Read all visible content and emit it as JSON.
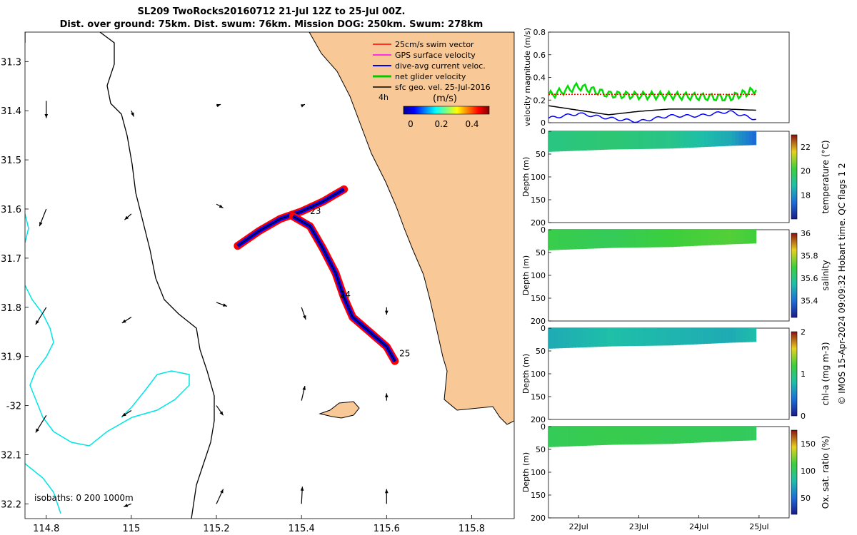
{
  "title": {
    "line1": "SL209 TwoRocks20160712 21-Jul 12Z to 25-Jul 00Z.",
    "line2": "Dist. over ground: 75km. Dist. swum: 76km. Mission DOG: 250km. Swum: 278km"
  },
  "chart_data": [
    {
      "type": "map",
      "name": "glider-track-map",
      "xlim": [
        114.75,
        115.9
      ],
      "ylim": [
        -32.23,
        -31.24
      ],
      "x_ticks": [
        114.8,
        115,
        115.2,
        115.4,
        115.6,
        115.8
      ],
      "x_tick_labels": [
        "114.8",
        "115",
        "115.2",
        "115.4",
        "115.6",
        "115.8"
      ],
      "y_ticks": [
        -31.3,
        -31.4,
        -31.5,
        -31.6,
        -31.7,
        -31.8,
        -31.9,
        -32.0,
        -32.1,
        -32.2
      ],
      "y_tick_labels": [
        "31.3",
        "31.4",
        "31.5",
        "31.6",
        "31.7",
        "31.8",
        "31.9",
        "-32",
        "32.1",
        "32.2"
      ],
      "legend": [
        {
          "label": "25cm/s swim vector",
          "color": "#ff0000"
        },
        {
          "label": "GPS surface velocity",
          "color": "#ff00ff"
        },
        {
          "label": "dive-avg current veloc.",
          "color": "#0000ff"
        },
        {
          "label": "net glider velocity",
          "color": "#00cc00"
        },
        {
          "label": "sfc geo. vel. 25-Jul-2016",
          "color": "#000000"
        }
      ],
      "speed_scale": {
        "annotation": "4h",
        "unit": "(m/s)",
        "ticks": [
          "0",
          "0.2",
          "0.4"
        ],
        "range": [
          0,
          0.5
        ]
      },
      "isobaths_label": "isobaths: 0   200  1000m",
      "day_labels": [
        {
          "text": "23",
          "lon": 115.42,
          "lat": -31.61
        },
        {
          "text": "24",
          "lon": 115.49,
          "lat": -31.78
        },
        {
          "text": "25",
          "lon": 115.63,
          "lat": -31.9
        }
      ],
      "track_outbound": [
        [
          115.25,
          -31.675
        ],
        [
          115.3,
          -31.645
        ],
        [
          115.35,
          -31.62
        ],
        [
          115.4,
          -31.605
        ],
        [
          115.45,
          -31.585
        ],
        [
          115.5,
          -31.56
        ]
      ],
      "track_southbound": [
        [
          115.38,
          -31.615
        ],
        [
          115.42,
          -31.635
        ],
        [
          115.45,
          -31.68
        ],
        [
          115.48,
          -31.73
        ],
        [
          115.5,
          -31.78
        ],
        [
          115.52,
          -31.82
        ],
        [
          115.56,
          -31.85
        ],
        [
          115.6,
          -31.88
        ],
        [
          115.62,
          -31.91
        ]
      ],
      "geo_vectors": [
        {
          "lon": 114.8,
          "lat": -31.38,
          "u": 0,
          "v": -0.035
        },
        {
          "lon": 115.0,
          "lat": -31.4,
          "u": 0.006,
          "v": -0.012
        },
        {
          "lon": 115.2,
          "lat": -31.39,
          "u": 0.01,
          "v": 0.003
        },
        {
          "lon": 115.4,
          "lat": -31.39,
          "u": 0.008,
          "v": 0.003
        },
        {
          "lon": 114.8,
          "lat": -31.6,
          "u": -0.016,
          "v": -0.035
        },
        {
          "lon": 115.0,
          "lat": -31.61,
          "u": -0.016,
          "v": -0.012
        },
        {
          "lon": 115.2,
          "lat": -31.59,
          "u": 0.016,
          "v": -0.008
        },
        {
          "lon": 114.8,
          "lat": -31.8,
          "u": -0.025,
          "v": -0.035
        },
        {
          "lon": 115.0,
          "lat": -31.82,
          "u": -0.022,
          "v": -0.012
        },
        {
          "lon": 115.2,
          "lat": -31.79,
          "u": 0.025,
          "v": -0.008
        },
        {
          "lon": 115.4,
          "lat": -31.8,
          "u": 0.01,
          "v": -0.025
        },
        {
          "lon": 115.6,
          "lat": -31.8,
          "u": 0,
          "v": -0.015
        },
        {
          "lon": 114.8,
          "lat": -32.02,
          "u": -0.025,
          "v": -0.035
        },
        {
          "lon": 115.0,
          "lat": -32.01,
          "u": -0.022,
          "v": -0.012
        },
        {
          "lon": 115.2,
          "lat": -32.0,
          "u": 0.016,
          "v": -0.02
        },
        {
          "lon": 115.4,
          "lat": -31.99,
          "u": 0.008,
          "v": 0.03
        },
        {
          "lon": 115.6,
          "lat": -31.99,
          "u": 0,
          "v": 0.015
        },
        {
          "lon": 115.0,
          "lat": -32.2,
          "u": -0.018,
          "v": -0.006
        },
        {
          "lon": 115.2,
          "lat": -32.2,
          "u": 0.016,
          "v": 0.03
        },
        {
          "lon": 115.4,
          "lat": -32.2,
          "u": 0.002,
          "v": 0.035
        },
        {
          "lon": 115.6,
          "lat": -32.2,
          "u": 0,
          "v": 0.03
        }
      ]
    },
    {
      "type": "line",
      "name": "velocity-magnitude",
      "ylabel": "velocity magnitude (m/s)",
      "ylim": [
        0,
        0.8
      ],
      "y_ticks": [
        0,
        0.2,
        0.4,
        0.6,
        0.8
      ],
      "y_tick_labels": [
        "0",
        "0.2",
        "0.4",
        "0.6",
        "0.8"
      ],
      "xlim": [
        21.5,
        25.5
      ],
      "x": [
        21.5,
        22.0,
        22.5,
        23.0,
        23.5,
        24.0,
        24.5,
        24.95
      ],
      "series": [
        {
          "name": "net glider velocity",
          "color": "#00dd00",
          "values": [
            0.24,
            0.32,
            0.25,
            0.24,
            0.24,
            0.23,
            0.22,
            0.29
          ]
        },
        {
          "name": "sfc geo. vel.",
          "color": "#000000",
          "values": [
            0.15,
            0.11,
            0.07,
            0.1,
            0.12,
            0.12,
            0.12,
            0.11
          ]
        },
        {
          "name": "dive-avg current veloc.",
          "color": "#0000ff",
          "values": [
            0.04,
            0.08,
            0.04,
            0.01,
            0.06,
            0.06,
            0.1,
            0.03
          ]
        },
        {
          "name": "swim vector",
          "color": "#ff0000",
          "values": [
            0.25,
            0.25,
            0.25,
            0.25,
            0.25,
            0.25,
            0.25,
            0.25
          ]
        }
      ]
    },
    {
      "type": "heatmap",
      "name": "temperature-section",
      "ylabel": "Depth (m)",
      "clabel": "temperature (°C)",
      "ylim": [
        200,
        0
      ],
      "y_tick_labels": [
        "0",
        "50",
        "100",
        "150",
        "200"
      ],
      "clim": [
        16,
        23
      ],
      "c_tick_labels": [
        "18",
        "20",
        "22"
      ],
      "x": [
        21.5,
        22.5,
        23.5,
        24.5,
        24.95
      ],
      "bottom_depth_m": [
        45,
        40,
        38,
        32,
        30
      ],
      "values": [
        19.3,
        19.5,
        19.2,
        18.4,
        17.2
      ]
    },
    {
      "type": "heatmap",
      "name": "salinity-section",
      "ylabel": "Depth (m)",
      "clabel": "salinity",
      "ylim": [
        200,
        0
      ],
      "y_tick_labels": [
        "0",
        "50",
        "100",
        "150",
        "200"
      ],
      "clim": [
        35.25,
        36.0
      ],
      "c_tick_labels": [
        "35.4",
        "35.6",
        "35.8",
        "36"
      ],
      "x": [
        21.5,
        22.5,
        23.5,
        24.5,
        24.95
      ],
      "bottom_depth_m": [
        45,
        40,
        38,
        32,
        30
      ],
      "values": [
        35.68,
        35.66,
        35.7,
        35.72,
        35.7
      ]
    },
    {
      "type": "heatmap",
      "name": "chl-a-section",
      "ylabel": "Depth (m)",
      "clabel": "chl-a (mg m-3)",
      "ylim": [
        200,
        0
      ],
      "y_tick_labels": [
        "0",
        "50",
        "100",
        "150",
        "200"
      ],
      "clim": [
        0,
        2
      ],
      "c_tick_labels": [
        "0",
        "1",
        "2"
      ],
      "x": [
        21.5,
        22.5,
        23.5,
        24.5,
        24.95
      ],
      "bottom_depth_m": [
        45,
        40,
        38,
        32,
        30
      ],
      "values": [
        0.7,
        0.8,
        0.75,
        0.7,
        0.8
      ]
    },
    {
      "type": "heatmap",
      "name": "oxygen-section",
      "ylabel": "Depth (m)",
      "clabel": "Ox. sat. ratio (%)",
      "ylim": [
        200,
        0
      ],
      "y_tick_labels": [
        "0",
        "50",
        "100",
        "150",
        "200"
      ],
      "clim": [
        20,
        175
      ],
      "c_tick_labels": [
        "50",
        "100",
        "150"
      ],
      "x": [
        21.5,
        22.5,
        23.5,
        24.5,
        24.95
      ],
      "bottom_depth_m": [
        45,
        40,
        38,
        32,
        30
      ],
      "values": [
        105,
        108,
        106,
        104,
        103
      ],
      "x_tick_labels": [
        "22Jul",
        "23Jul",
        "24Jul",
        "25Jul"
      ],
      "x_ticks": [
        22,
        23,
        24,
        25
      ]
    }
  ],
  "side_note": "© IMOS 15-Apr-2024 09:09:32 Hobart time. QC flags 1  2"
}
